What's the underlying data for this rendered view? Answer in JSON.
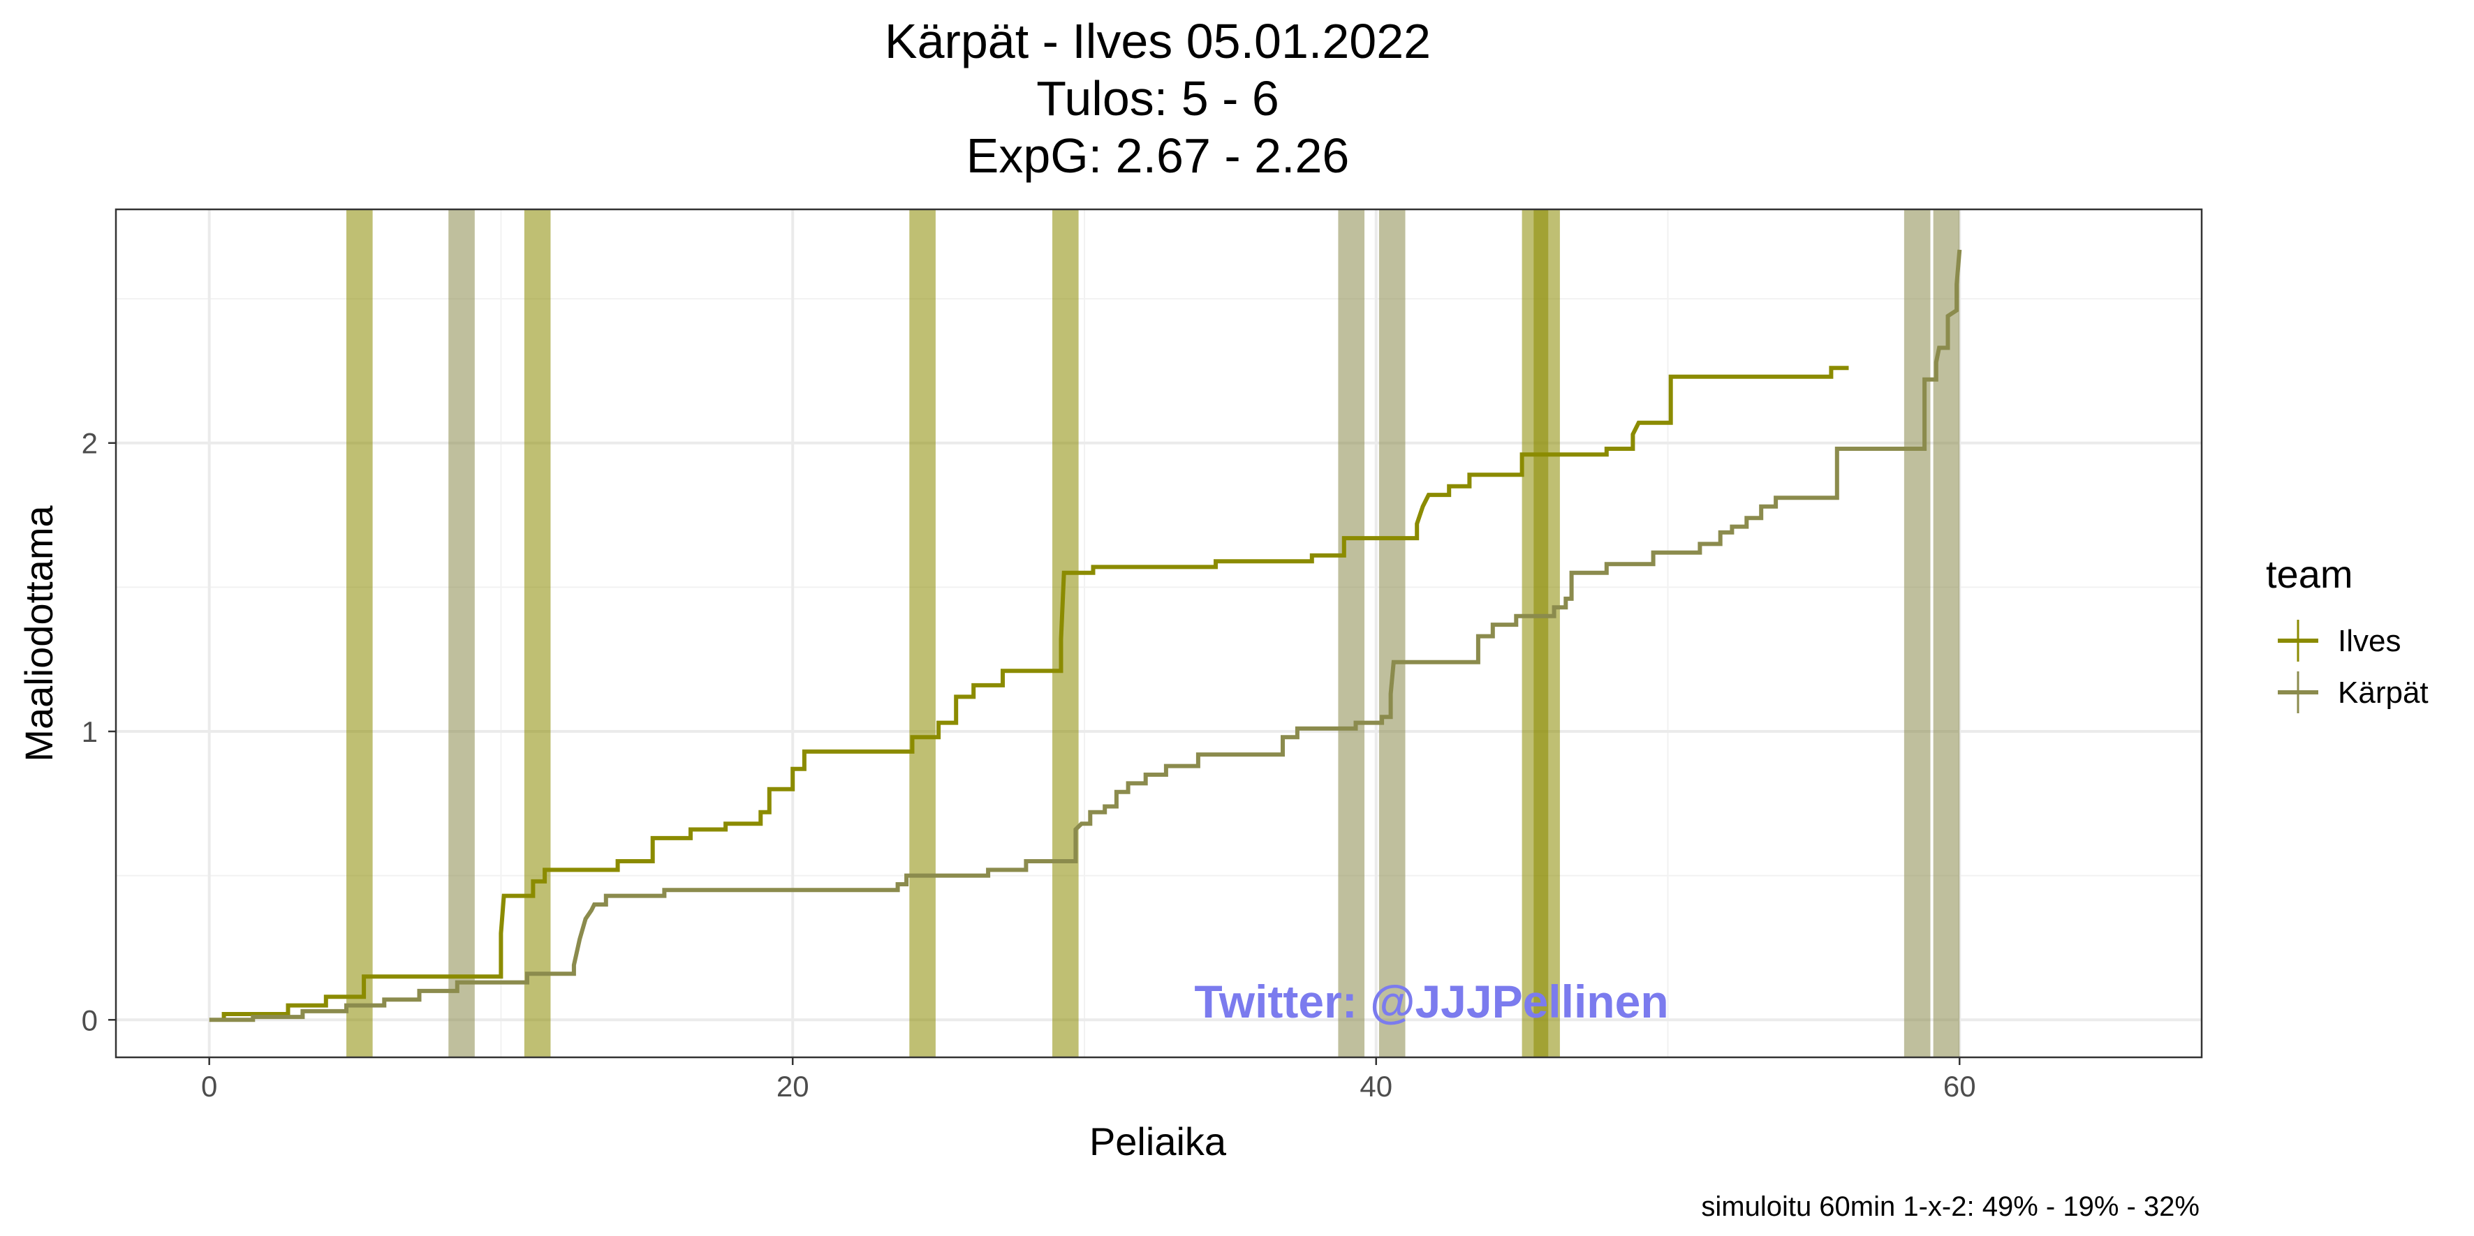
{
  "chart_data": {
    "type": "line",
    "title_lines": [
      "Kärpät - Ilves 05.01.2022",
      "Tulos: 5 - 6",
      "ExpG: 2.67 - 2.26"
    ],
    "xlabel": "Peliaika",
    "ylabel": "Maaliodottama",
    "xlim": [
      -3.2,
      68.3
    ],
    "ylim": [
      -0.13,
      2.81
    ],
    "x_ticks": [
      0,
      20,
      40,
      60
    ],
    "y_ticks": [
      0,
      1,
      2
    ],
    "grid": true,
    "legend": {
      "title": "team",
      "placement": "right"
    },
    "series": [
      {
        "name": "Ilves",
        "color": "#8b8b00",
        "step": true,
        "points": [
          [
            0.5,
            0.0
          ],
          [
            0.5,
            0.02
          ],
          [
            2.7,
            0.02
          ],
          [
            2.7,
            0.05
          ],
          [
            4.0,
            0.05
          ],
          [
            4.0,
            0.08
          ],
          [
            5.3,
            0.08
          ],
          [
            5.3,
            0.15
          ],
          [
            10.0,
            0.15
          ],
          [
            10.0,
            0.3
          ],
          [
            10.1,
            0.43
          ],
          [
            11.1,
            0.43
          ],
          [
            11.1,
            0.48
          ],
          [
            11.5,
            0.48
          ],
          [
            11.5,
            0.52
          ],
          [
            14.0,
            0.52
          ],
          [
            14.0,
            0.55
          ],
          [
            15.2,
            0.55
          ],
          [
            15.2,
            0.63
          ],
          [
            16.5,
            0.63
          ],
          [
            16.5,
            0.66
          ],
          [
            17.7,
            0.66
          ],
          [
            17.7,
            0.68
          ],
          [
            18.9,
            0.68
          ],
          [
            18.9,
            0.72
          ],
          [
            19.2,
            0.72
          ],
          [
            19.2,
            0.8
          ],
          [
            20.0,
            0.8
          ],
          [
            20.0,
            0.87
          ],
          [
            20.4,
            0.87
          ],
          [
            20.4,
            0.93
          ],
          [
            24.1,
            0.93
          ],
          [
            24.1,
            0.98
          ],
          [
            25.0,
            0.98
          ],
          [
            25.0,
            1.03
          ],
          [
            25.6,
            1.03
          ],
          [
            25.6,
            1.12
          ],
          [
            26.2,
            1.12
          ],
          [
            26.2,
            1.16
          ],
          [
            27.2,
            1.16
          ],
          [
            27.2,
            1.21
          ],
          [
            29.2,
            1.21
          ],
          [
            29.2,
            1.32
          ],
          [
            29.3,
            1.55
          ],
          [
            30.3,
            1.55
          ],
          [
            30.3,
            1.57
          ],
          [
            34.5,
            1.57
          ],
          [
            34.5,
            1.59
          ],
          [
            37.8,
            1.59
          ],
          [
            37.8,
            1.61
          ],
          [
            38.9,
            1.61
          ],
          [
            38.9,
            1.67
          ],
          [
            41.4,
            1.67
          ],
          [
            41.4,
            1.72
          ],
          [
            41.6,
            1.78
          ],
          [
            41.8,
            1.82
          ],
          [
            42.5,
            1.82
          ],
          [
            42.5,
            1.85
          ],
          [
            43.2,
            1.85
          ],
          [
            43.2,
            1.89
          ],
          [
            45.0,
            1.89
          ],
          [
            45.0,
            1.96
          ],
          [
            47.9,
            1.96
          ],
          [
            47.9,
            1.98
          ],
          [
            48.8,
            1.98
          ],
          [
            48.8,
            2.03
          ],
          [
            49.0,
            2.07
          ],
          [
            50.1,
            2.07
          ],
          [
            50.1,
            2.23
          ],
          [
            55.6,
            2.23
          ],
          [
            55.6,
            2.26
          ],
          [
            56.2,
            2.26
          ]
        ]
      },
      {
        "name": "Kärpät",
        "color": "#8b8b4d",
        "step": true,
        "points": [
          [
            0.0,
            0.0
          ],
          [
            1.5,
            0.0
          ],
          [
            1.5,
            0.01
          ],
          [
            3.2,
            0.01
          ],
          [
            3.2,
            0.03
          ],
          [
            4.7,
            0.03
          ],
          [
            4.7,
            0.05
          ],
          [
            6.0,
            0.05
          ],
          [
            6.0,
            0.07
          ],
          [
            7.2,
            0.07
          ],
          [
            7.2,
            0.1
          ],
          [
            8.5,
            0.1
          ],
          [
            8.5,
            0.13
          ],
          [
            10.9,
            0.13
          ],
          [
            10.9,
            0.16
          ],
          [
            12.5,
            0.16
          ],
          [
            12.5,
            0.19
          ],
          [
            12.7,
            0.28
          ],
          [
            12.9,
            0.35
          ],
          [
            13.1,
            0.38
          ],
          [
            13.2,
            0.4
          ],
          [
            13.6,
            0.4
          ],
          [
            13.6,
            0.43
          ],
          [
            15.6,
            0.43
          ],
          [
            15.6,
            0.45
          ],
          [
            23.6,
            0.45
          ],
          [
            23.6,
            0.47
          ],
          [
            23.9,
            0.47
          ],
          [
            23.9,
            0.5
          ],
          [
            26.7,
            0.5
          ],
          [
            26.7,
            0.52
          ],
          [
            28.0,
            0.52
          ],
          [
            28.0,
            0.55
          ],
          [
            29.7,
            0.55
          ],
          [
            29.7,
            0.66
          ],
          [
            29.9,
            0.68
          ],
          [
            30.2,
            0.68
          ],
          [
            30.2,
            0.72
          ],
          [
            30.7,
            0.72
          ],
          [
            30.7,
            0.74
          ],
          [
            31.1,
            0.74
          ],
          [
            31.1,
            0.79
          ],
          [
            31.5,
            0.79
          ],
          [
            31.5,
            0.82
          ],
          [
            32.1,
            0.82
          ],
          [
            32.1,
            0.85
          ],
          [
            32.8,
            0.85
          ],
          [
            32.8,
            0.88
          ],
          [
            33.9,
            0.88
          ],
          [
            33.9,
            0.92
          ],
          [
            36.8,
            0.92
          ],
          [
            36.8,
            0.98
          ],
          [
            37.3,
            0.98
          ],
          [
            37.3,
            1.01
          ],
          [
            39.3,
            1.01
          ],
          [
            39.3,
            1.03
          ],
          [
            40.2,
            1.03
          ],
          [
            40.2,
            1.05
          ],
          [
            40.5,
            1.05
          ],
          [
            40.5,
            1.13
          ],
          [
            40.6,
            1.24
          ],
          [
            43.5,
            1.24
          ],
          [
            43.5,
            1.33
          ],
          [
            44.0,
            1.33
          ],
          [
            44.0,
            1.37
          ],
          [
            44.8,
            1.37
          ],
          [
            44.8,
            1.4
          ],
          [
            46.1,
            1.4
          ],
          [
            46.1,
            1.43
          ],
          [
            46.5,
            1.43
          ],
          [
            46.5,
            1.46
          ],
          [
            46.7,
            1.46
          ],
          [
            46.7,
            1.55
          ],
          [
            47.9,
            1.55
          ],
          [
            47.9,
            1.58
          ],
          [
            49.5,
            1.58
          ],
          [
            49.5,
            1.62
          ],
          [
            51.1,
            1.62
          ],
          [
            51.1,
            1.65
          ],
          [
            51.8,
            1.65
          ],
          [
            51.8,
            1.69
          ],
          [
            52.2,
            1.69
          ],
          [
            52.2,
            1.71
          ],
          [
            52.7,
            1.71
          ],
          [
            52.7,
            1.74
          ],
          [
            53.2,
            1.74
          ],
          [
            53.2,
            1.78
          ],
          [
            53.7,
            1.78
          ],
          [
            53.7,
            1.81
          ],
          [
            55.8,
            1.81
          ],
          [
            55.8,
            1.98
          ],
          [
            58.8,
            1.98
          ],
          [
            58.8,
            2.22
          ],
          [
            59.2,
            2.22
          ],
          [
            59.2,
            2.28
          ],
          [
            59.3,
            2.33
          ],
          [
            59.6,
            2.33
          ],
          [
            59.6,
            2.44
          ],
          [
            59.9,
            2.46
          ],
          [
            59.9,
            2.55
          ],
          [
            60.0,
            2.67
          ]
        ]
      }
    ],
    "shaded_intervals": [
      {
        "team": "Ilves",
        "x0": 4.7,
        "x1": 5.6,
        "color": "#8b8b00"
      },
      {
        "team": "Kärpät",
        "x0": 8.2,
        "x1": 9.1,
        "color": "#8b8b4d"
      },
      {
        "team": "Ilves",
        "x0": 10.8,
        "x1": 11.7,
        "color": "#8b8b00"
      },
      {
        "team": "Ilves",
        "x0": 24.0,
        "x1": 24.9,
        "color": "#8b8b00"
      },
      {
        "team": "Ilves",
        "x0": 28.9,
        "x1": 29.8,
        "color": "#8b8b00"
      },
      {
        "team": "Kärpät",
        "x0": 38.7,
        "x1": 39.6,
        "color": "#8b8b4d"
      },
      {
        "team": "Kärpät",
        "x0": 40.1,
        "x1": 41.0,
        "color": "#8b8b4d"
      },
      {
        "team": "Ilves",
        "x0": 45.0,
        "x1": 45.9,
        "color": "#8b8b00"
      },
      {
        "team": "Ilves",
        "x0": 45.4,
        "x1": 46.3,
        "color": "#8b8b00"
      },
      {
        "team": "Kärpät",
        "x0": 58.1,
        "x1": 59.0,
        "color": "#8b8b4d"
      },
      {
        "team": "Kärpät",
        "x0": 59.1,
        "x1": 60.0,
        "color": "#8b8b4d"
      }
    ],
    "watermark": "Twitter: @JJJPellinen",
    "caption": "simuloitu 60min 1-x-2:  49% - 19% - 32%"
  }
}
